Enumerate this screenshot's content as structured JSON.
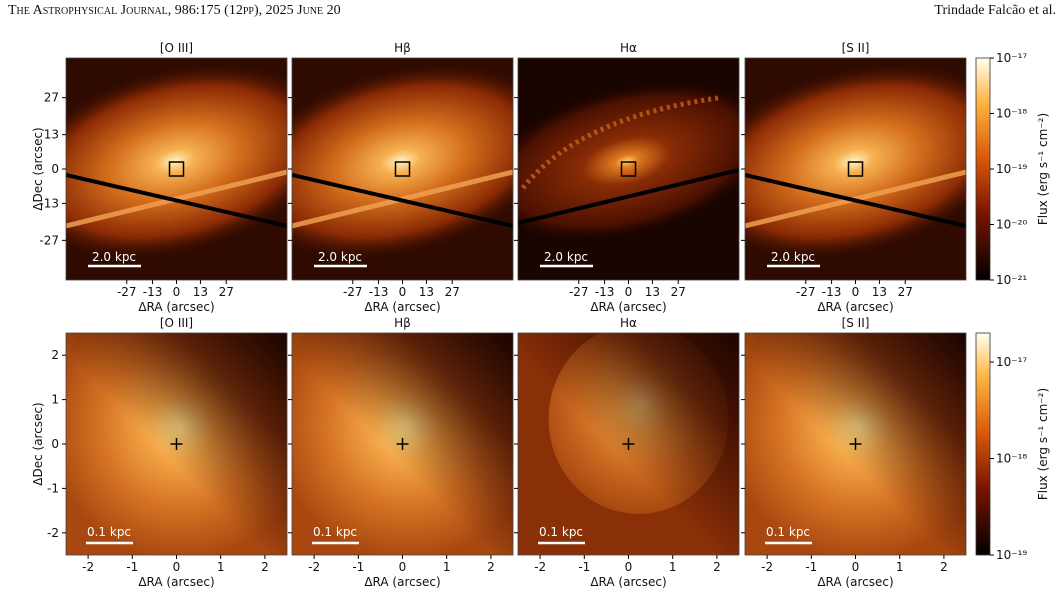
{
  "header": {
    "journal": "The Astrophysical Journal, 986:175 (12pp), 2025 June 20",
    "authors": "Trindade Falcão et al."
  },
  "figure": {
    "rows": [
      {
        "panels": [
          {
            "title": "[O III]"
          },
          {
            "title": "Hβ"
          },
          {
            "title": "Hα"
          },
          {
            "title": "[S II]"
          }
        ],
        "xlabel": "ΔRA (arcsec)",
        "ylabel": "ΔDec (arcsec)",
        "xlim": [
          -60,
          60
        ],
        "ylim": [
          -42,
          42
        ],
        "xticks": [
          -27,
          -13,
          0,
          13,
          27
        ],
        "yticks": [
          27,
          13,
          0,
          -13,
          -27
        ],
        "scale_bar": "2.0 kpc",
        "colorbar": {
          "label": "Flux (erg s⁻¹ cm⁻²)",
          "log": true,
          "lim": [
            1e-21,
            1e-17
          ],
          "ticks": [
            {
              "value": 1e-17,
              "label": "10⁻¹⁷"
            },
            {
              "value": 1e-18,
              "label": "10⁻¹⁸"
            },
            {
              "value": 1e-19,
              "label": "10⁻¹⁹"
            },
            {
              "value": 1e-20,
              "label": "10⁻²⁰"
            },
            {
              "value": 1e-21,
              "label": "10⁻²¹"
            }
          ]
        }
      },
      {
        "panels": [
          {
            "title": "[O III]"
          },
          {
            "title": "Hβ"
          },
          {
            "title": "Hα"
          },
          {
            "title": "[S II]"
          }
        ],
        "xlabel": "ΔRA (arcsec)",
        "ylabel": "ΔDec (arcsec)",
        "xlim": [
          -2.5,
          2.5
        ],
        "ylim": [
          -2.5,
          2.5
        ],
        "xticks": [
          -2,
          -1,
          0,
          1,
          2
        ],
        "yticks": [
          2,
          1,
          0,
          -1,
          -2
        ],
        "scale_bar": "0.1 kpc",
        "colorbar": {
          "label": "Flux (erg s⁻¹ cm⁻²)",
          "log": true,
          "lim": [
            1e-19,
            2e-17
          ],
          "ticks": [
            {
              "value": 1e-17,
              "label": "10⁻¹⁷"
            },
            {
              "value": 1e-18,
              "label": "10⁻¹⁸"
            },
            {
              "value": 1e-19,
              "label": "10⁻¹⁹"
            }
          ]
        }
      }
    ]
  }
}
